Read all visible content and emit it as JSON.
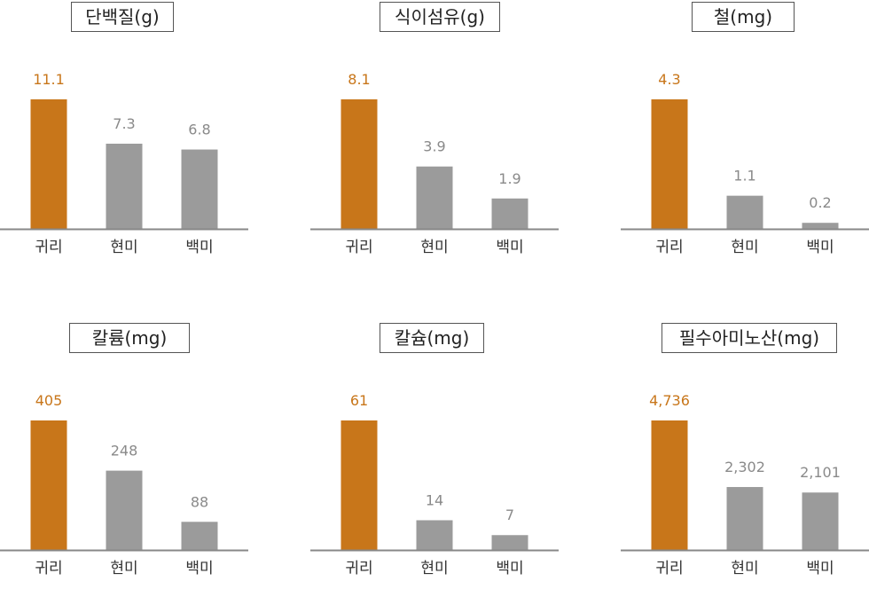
{
  "colors": {
    "highlight": "#C8761A",
    "other": "#9B9B9B",
    "axis": "#888888",
    "label_other": "#8A8A8A",
    "label_highlight": "#C8761A"
  },
  "chart_data": [
    {
      "type": "bar",
      "title": "단백질(g)",
      "categories": [
        "귀리",
        "현미",
        "백미"
      ],
      "values": [
        11.1,
        7.3,
        6.8
      ],
      "labels": [
        "11.1",
        "7.3",
        "6.8"
      ],
      "ylim": [
        0,
        11.1
      ],
      "highlight_index": 0
    },
    {
      "type": "bar",
      "title": "식이섬유(g)",
      "categories": [
        "귀리",
        "현미",
        "백미"
      ],
      "values": [
        8.1,
        3.9,
        1.9
      ],
      "labels": [
        "8.1",
        "3.9",
        "1.9"
      ],
      "ylim": [
        0,
        8.1
      ],
      "highlight_index": 0
    },
    {
      "type": "bar",
      "title": "철(mg)",
      "categories": [
        "귀리",
        "현미",
        "백미"
      ],
      "values": [
        4.3,
        1.1,
        0.2
      ],
      "labels": [
        "4.3",
        "1.1",
        "0.2"
      ],
      "ylim": [
        0,
        4.3
      ],
      "highlight_index": 0
    },
    {
      "type": "bar",
      "title": "칼륨(mg)",
      "categories": [
        "귀리",
        "현미",
        "백미"
      ],
      "values": [
        405,
        248,
        88
      ],
      "labels": [
        "405",
        "248",
        "88"
      ],
      "ylim": [
        0,
        405
      ],
      "highlight_index": 0
    },
    {
      "type": "bar",
      "title": "칼슘(mg)",
      "categories": [
        "귀리",
        "현미",
        "백미"
      ],
      "values": [
        61,
        14,
        7
      ],
      "labels": [
        "61",
        "14",
        "7"
      ],
      "ylim": [
        0,
        61
      ],
      "highlight_index": 0
    },
    {
      "type": "bar",
      "title": "필수아미노산(mg)",
      "categories": [
        "귀리",
        "현미",
        "백미"
      ],
      "values": [
        4736,
        2302,
        2101
      ],
      "labels": [
        "4,736",
        "2,302",
        "2,101"
      ],
      "ylim": [
        0,
        4736
      ],
      "highlight_index": 0
    }
  ]
}
